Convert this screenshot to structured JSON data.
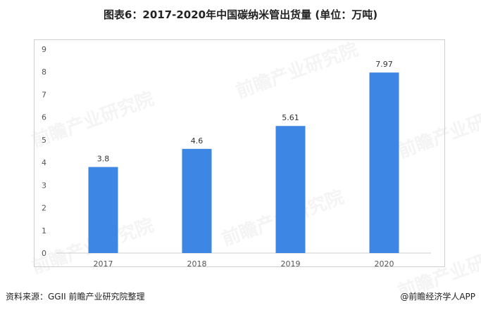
{
  "title": "图表6：2017-2020年中国碳纳米管出货量 (单位：万吨)",
  "source": "资料来源：GGII 前瞻产业研究院整理",
  "credit": "@前瞻经济学人APP",
  "watermark": "前瞻产业研究院",
  "colors": {
    "bar": "#3d86e3",
    "axis": "#cfcfcf"
  },
  "chart_data": {
    "type": "bar",
    "categories": [
      "2017",
      "2018",
      "2019",
      "2020"
    ],
    "values": [
      3.8,
      4.6,
      5.61,
      7.97
    ],
    "data_labels": [
      "3.8",
      "4.6",
      "5.61",
      "7.97"
    ],
    "title": "图表6：2017-2020年中国碳纳米管出货量 (单位：万吨)",
    "xlabel": "",
    "ylabel": "",
    "ylim": [
      0,
      9
    ],
    "yticks": [
      "0",
      "1",
      "2",
      "3",
      "4",
      "5",
      "6",
      "7",
      "8",
      "9"
    ],
    "grid": false,
    "legend": "none"
  }
}
